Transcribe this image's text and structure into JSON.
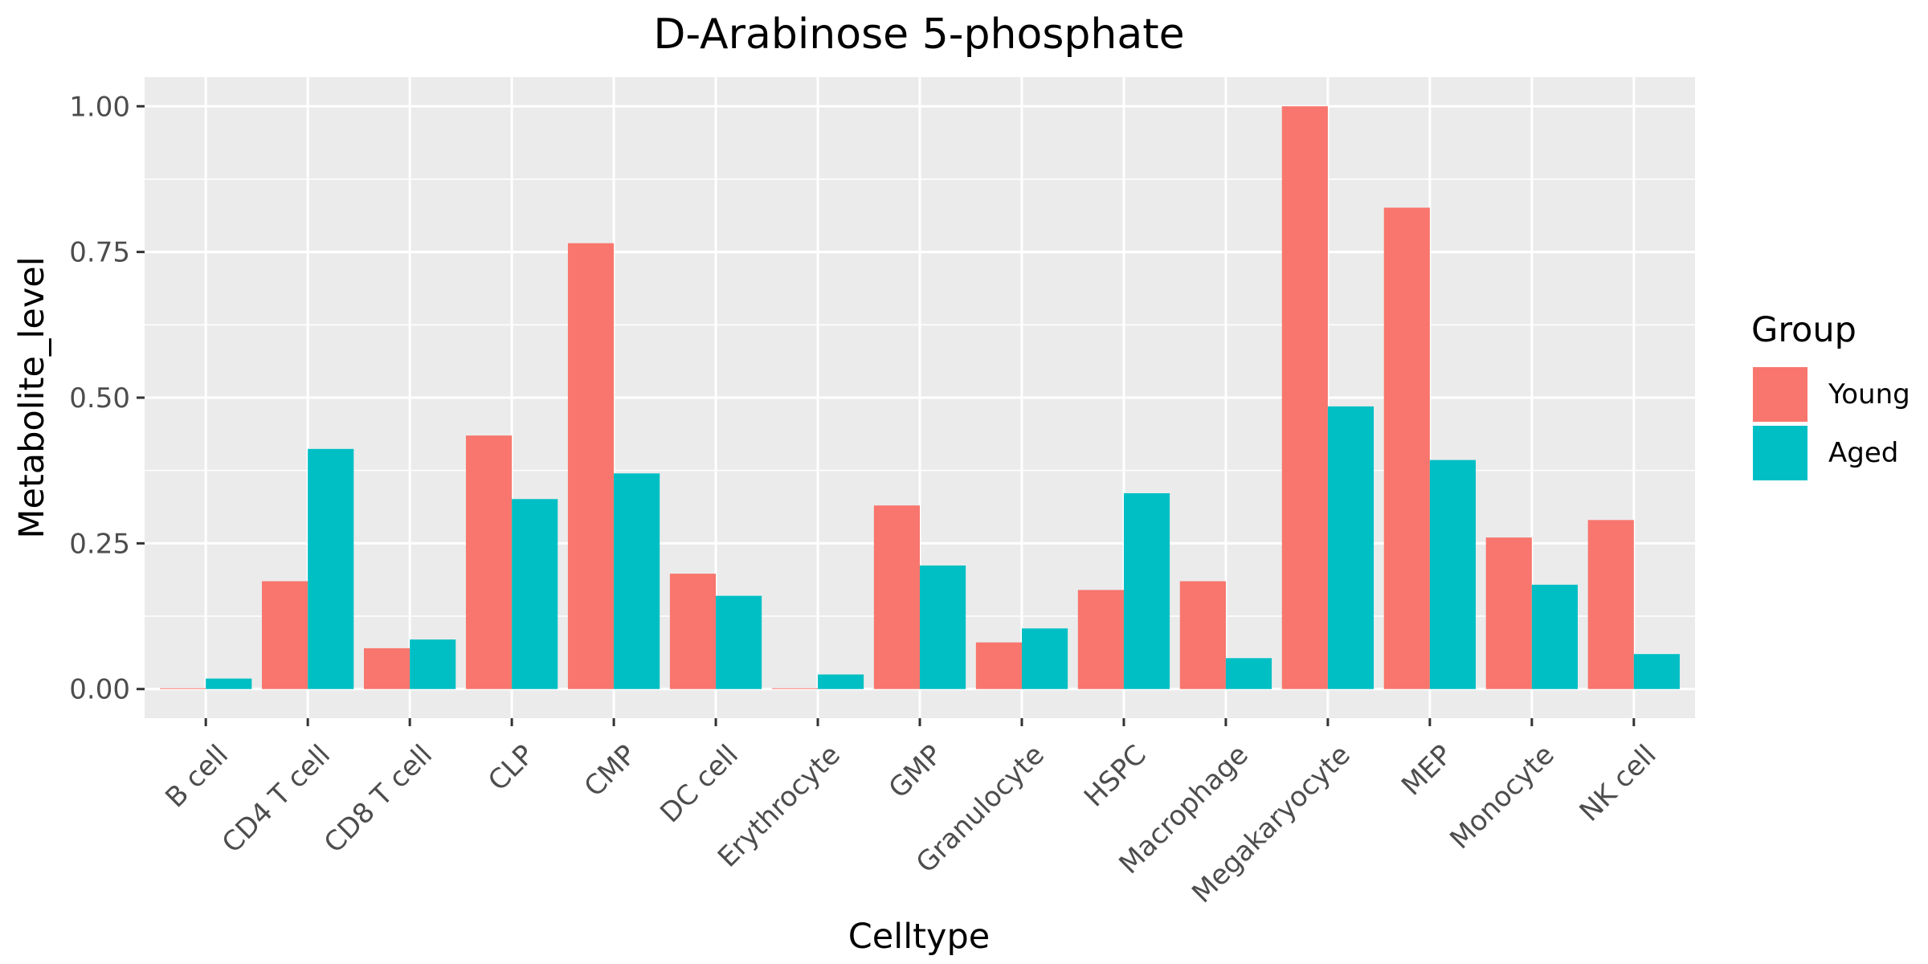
{
  "chart_data": {
    "type": "bar",
    "title": "D-Arabinose 5-phosphate",
    "xlabel": "Celltype",
    "ylabel": "Metabolite_level",
    "ylim": [
      -0.05,
      1.05
    ],
    "yticks": [
      "0.00",
      "0.25",
      "0.50",
      "0.75",
      "1.00"
    ],
    "grid": true,
    "legend_position": "right",
    "legend_title": "Group",
    "categories": [
      "B cell",
      "CD4 T cell",
      "CD8 T cell",
      "CLP",
      "CMP",
      "DC cell",
      "Erythrocyte",
      "GMP",
      "Granulocyte",
      "HSPC",
      "Macrophage",
      "Megakaryocyte",
      "MEP",
      "Monocyte",
      "NK cell"
    ],
    "series": [
      {
        "name": "Young",
        "color": "#F8766D",
        "values": [
          0.0,
          0.185,
          0.07,
          0.435,
          0.765,
          0.198,
          0.0,
          0.315,
          0.08,
          0.17,
          0.185,
          1.0,
          0.826,
          0.26,
          0.29
        ]
      },
      {
        "name": "Aged",
        "color": "#00BFC4",
        "values": [
          0.018,
          0.412,
          0.085,
          0.326,
          0.37,
          0.16,
          0.025,
          0.212,
          0.104,
          0.336,
          0.053,
          0.485,
          0.393,
          0.179,
          0.06
        ]
      }
    ]
  }
}
